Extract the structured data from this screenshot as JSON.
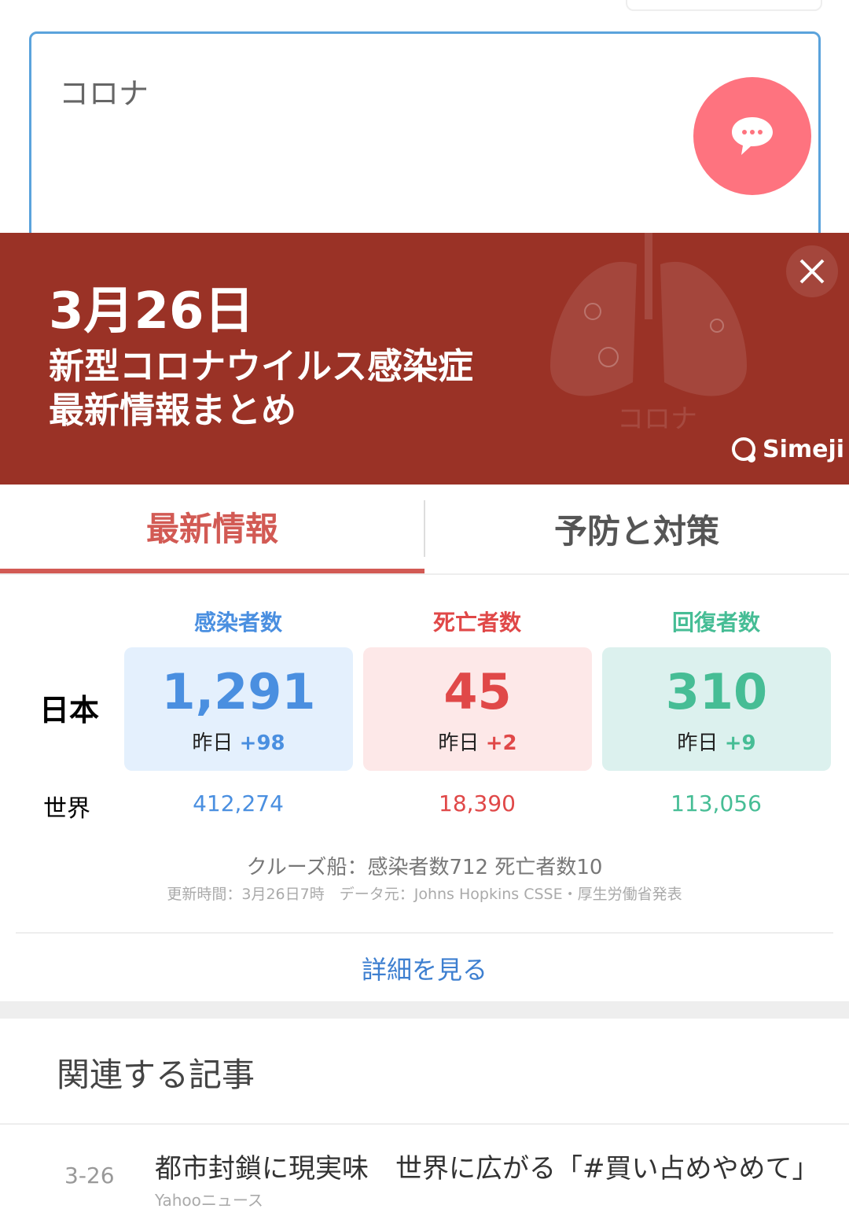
{
  "search": {
    "value": "コロナ"
  },
  "banner": {
    "date": "3月26日",
    "title_line1": "新型コロナウイルス感染症",
    "title_line2": "最新情報まとめ",
    "watermark": "コロナ",
    "brand": "Simeji",
    "bg_color": "#9a3226"
  },
  "tabs": [
    {
      "label": "最新情報",
      "active": true
    },
    {
      "label": "予防と対策",
      "active": false
    }
  ],
  "stats": {
    "headers": [
      "感染者数",
      "死亡者数",
      "回復者数"
    ],
    "japan_label": "日本",
    "world_label": "世界",
    "yesterday_label": "昨日",
    "japan": [
      "1,291",
      "45",
      "310"
    ],
    "japan_delta": [
      "+98",
      "+2",
      "+9"
    ],
    "world": [
      "412,274",
      "18,390",
      "113,056"
    ],
    "colors": [
      "#4a8fe0",
      "#e04848",
      "#46bd95"
    ]
  },
  "cruise": "クルーズ船：感染者数712 死亡者数10",
  "update": "更新時間：3月26日7時　データ元：Johns Hopkins CSSE・厚生労働省発表",
  "more_link": "詳細を見る",
  "related": {
    "title": "関連する記事",
    "articles": [
      {
        "date": "3-26",
        "title": "都市封鎖に現実味　世界に広がる「#買い占めやめて」",
        "source": "Yahooニュース"
      }
    ]
  }
}
